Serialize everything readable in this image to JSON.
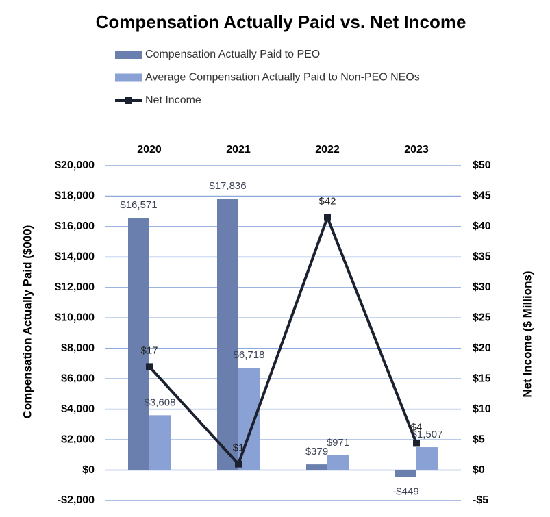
{
  "chart_data": {
    "type": "bar",
    "title": "Compensation Actually Paid vs. Net Income",
    "y_label": "Compensation Actually Paid ($000)",
    "y2_label": "Net Income ($ Millions)",
    "categories": [
      "2020",
      "2021",
      "2022",
      "2023"
    ],
    "series": [
      {
        "name": "Compensation Actually Paid to PEO",
        "color": "#6b7fae",
        "values": [
          16571,
          17836,
          379,
          -449
        ],
        "value_labels": [
          "$16,571",
          "$17,836",
          "$379",
          "-$449"
        ]
      },
      {
        "name": "Average Compensation Actually Paid to Non-PEO NEOs",
        "color": "#8aa1d6",
        "values": [
          3608,
          6718,
          971,
          1507
        ],
        "value_labels": [
          "$3,608",
          "$6,718",
          "$971",
          "$1,507"
        ]
      },
      {
        "name": "Net Income",
        "type": "line",
        "axis": "y2",
        "color": "#1c2130",
        "values": [
          17,
          1,
          41.5,
          4.4
        ],
        "value_labels": [
          "$17",
          "$1",
          "$42",
          "$4"
        ]
      }
    ],
    "ylim": [
      -2000,
      20000
    ],
    "yticks": [
      {
        "value": -2000,
        "label": "-$2,000"
      },
      {
        "value": 0,
        "label": "$0"
      },
      {
        "value": 2000,
        "label": "$2,000"
      },
      {
        "value": 4000,
        "label": "$4,000"
      },
      {
        "value": 6000,
        "label": "$6,000"
      },
      {
        "value": 8000,
        "label": "$8,000"
      },
      {
        "value": 10000,
        "label": "$10,000"
      },
      {
        "value": 12000,
        "label": "$12,000"
      },
      {
        "value": 14000,
        "label": "$14,000"
      },
      {
        "value": 16000,
        "label": "$16,000"
      },
      {
        "value": 18000,
        "label": "$18,000"
      },
      {
        "value": 20000,
        "label": "$20,000"
      }
    ],
    "y2lim": [
      -5,
      50
    ],
    "y2ticks": [
      {
        "value": -5,
        "label": "-$5"
      },
      {
        "value": 0,
        "label": "$0"
      },
      {
        "value": 5,
        "label": "$5"
      },
      {
        "value": 10,
        "label": "$10"
      },
      {
        "value": 15,
        "label": "$15"
      },
      {
        "value": 20,
        "label": "$20"
      },
      {
        "value": 25,
        "label": "$25"
      },
      {
        "value": 30,
        "label": "$30"
      },
      {
        "value": 35,
        "label": "$35"
      },
      {
        "value": 40,
        "label": "$40"
      },
      {
        "value": 45,
        "label": "$45"
      },
      {
        "value": 50,
        "label": "$50"
      }
    ],
    "grid": true
  }
}
